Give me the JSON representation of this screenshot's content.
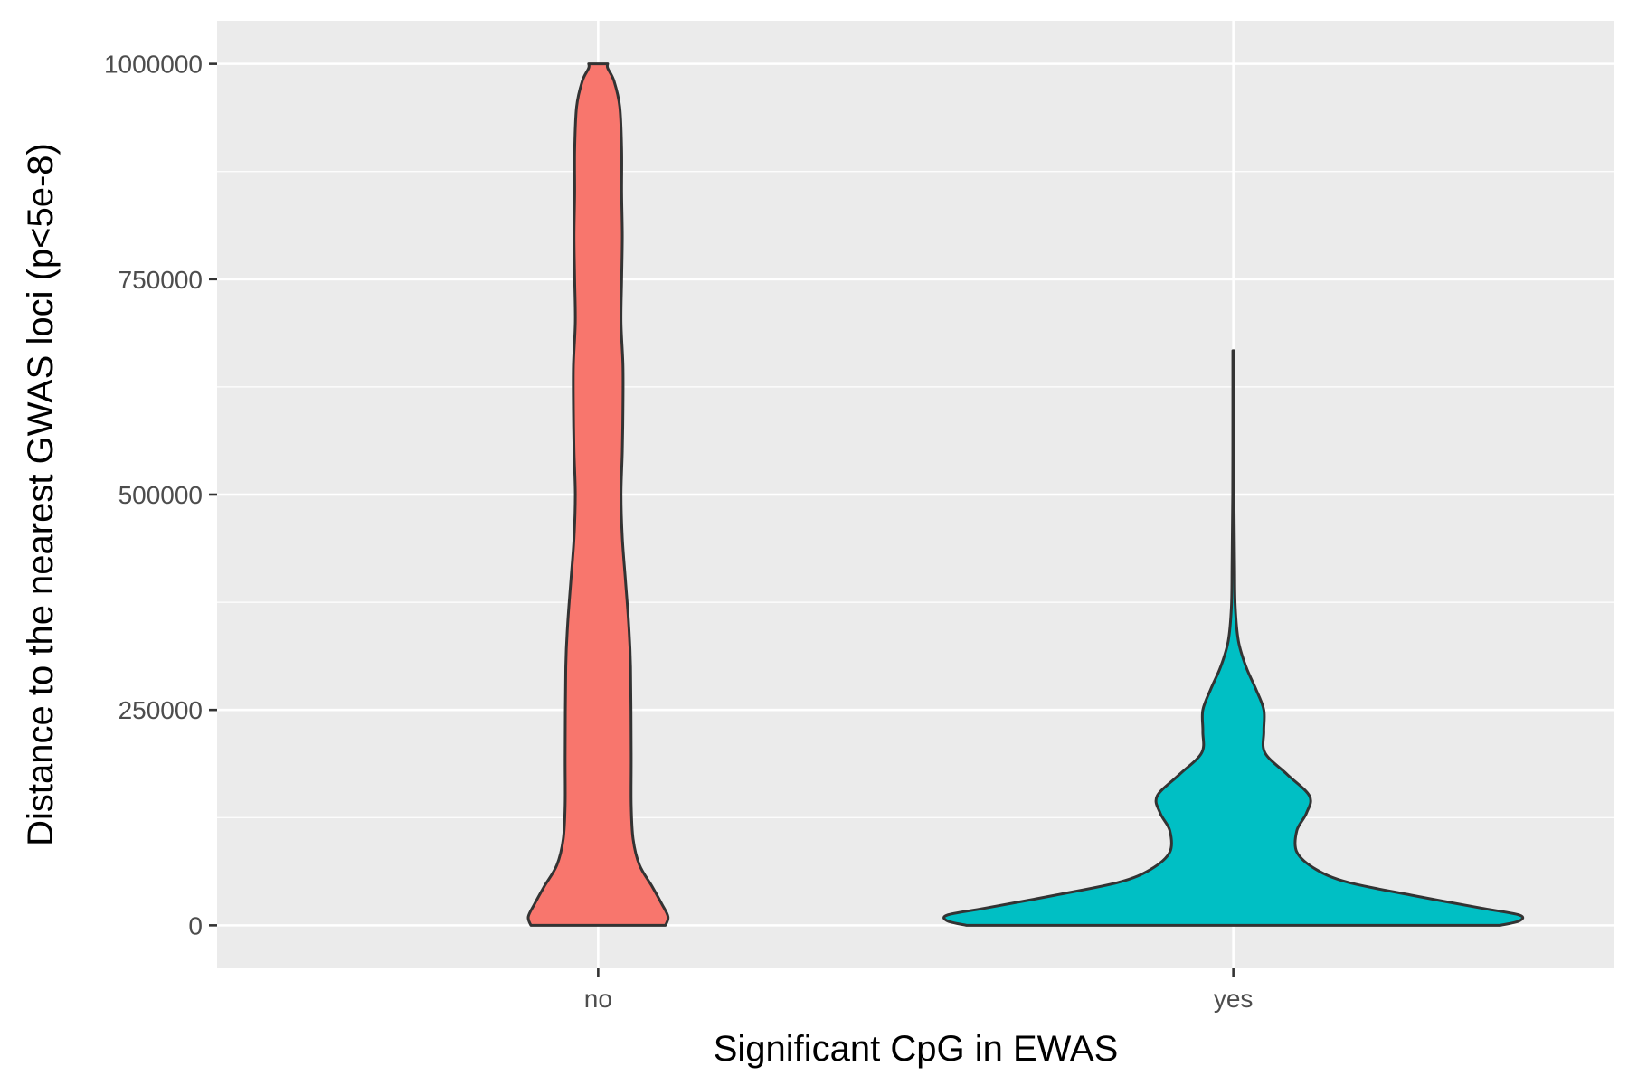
{
  "chart_data": {
    "type": "violin",
    "xlabel": "Significant CpG in EWAS",
    "ylabel": "Distance to the nearest GWAS loci (p<5e-8)",
    "categories": [
      "no",
      "yes"
    ],
    "ylim": [
      -50000,
      1050000
    ],
    "y_ticks": [
      0,
      250000,
      500000,
      750000,
      1000000
    ],
    "y_tick_labels": [
      "0",
      "250000",
      "500000",
      "750000",
      "1000000"
    ],
    "y_minor_ticks": [
      125000,
      375000,
      625000,
      875000
    ],
    "grid": true,
    "background": "#EBEBEB",
    "grid_color": "#FFFFFF",
    "outline_color": "#333333",
    "series": [
      {
        "category": "no",
        "color": "#F8766D",
        "y_range": [
          0,
          1000000
        ],
        "max_half_width": 0.11,
        "density_profile": [
          {
            "y": 0,
            "half_width": 0.106
          },
          {
            "y": 10000,
            "half_width": 0.11
          },
          {
            "y": 25000,
            "half_width": 0.1
          },
          {
            "y": 45000,
            "half_width": 0.085
          },
          {
            "y": 70000,
            "half_width": 0.065
          },
          {
            "y": 100000,
            "half_width": 0.055
          },
          {
            "y": 140000,
            "half_width": 0.052
          },
          {
            "y": 200000,
            "half_width": 0.052
          },
          {
            "y": 300000,
            "half_width": 0.051
          },
          {
            "y": 350000,
            "half_width": 0.048
          },
          {
            "y": 400000,
            "half_width": 0.043
          },
          {
            "y": 450000,
            "half_width": 0.038
          },
          {
            "y": 500000,
            "half_width": 0.036
          },
          {
            "y": 550000,
            "half_width": 0.038
          },
          {
            "y": 600000,
            "half_width": 0.039
          },
          {
            "y": 650000,
            "half_width": 0.039
          },
          {
            "y": 700000,
            "half_width": 0.036
          },
          {
            "y": 750000,
            "half_width": 0.037
          },
          {
            "y": 800000,
            "half_width": 0.038
          },
          {
            "y": 850000,
            "half_width": 0.037
          },
          {
            "y": 900000,
            "half_width": 0.037
          },
          {
            "y": 950000,
            "half_width": 0.034
          },
          {
            "y": 980000,
            "half_width": 0.025
          },
          {
            "y": 995000,
            "half_width": 0.015
          },
          {
            "y": 1000000,
            "half_width": 0.015
          }
        ]
      },
      {
        "category": "yes",
        "color": "#00BFC4",
        "y_range": [
          0,
          667000
        ],
        "max_half_width": 0.45,
        "density_profile": [
          {
            "y": 0,
            "half_width": 0.42
          },
          {
            "y": 5000,
            "half_width": 0.45
          },
          {
            "y": 12000,
            "half_width": 0.45
          },
          {
            "y": 20000,
            "half_width": 0.39
          },
          {
            "y": 35000,
            "half_width": 0.28
          },
          {
            "y": 50000,
            "half_width": 0.18
          },
          {
            "y": 65000,
            "half_width": 0.13
          },
          {
            "y": 85000,
            "half_width": 0.1
          },
          {
            "y": 110000,
            "half_width": 0.1
          },
          {
            "y": 130000,
            "half_width": 0.115
          },
          {
            "y": 150000,
            "half_width": 0.12
          },
          {
            "y": 175000,
            "half_width": 0.085
          },
          {
            "y": 200000,
            "half_width": 0.05
          },
          {
            "y": 225000,
            "half_width": 0.048
          },
          {
            "y": 250000,
            "half_width": 0.048
          },
          {
            "y": 275000,
            "half_width": 0.035
          },
          {
            "y": 300000,
            "half_width": 0.02
          },
          {
            "y": 330000,
            "half_width": 0.008
          },
          {
            "y": 370000,
            "half_width": 0.003
          },
          {
            "y": 420000,
            "half_width": 0.002
          },
          {
            "y": 500000,
            "half_width": 0.001
          },
          {
            "y": 600000,
            "half_width": 0.0008
          },
          {
            "y": 667000,
            "half_width": 0.0008
          }
        ]
      }
    ]
  }
}
